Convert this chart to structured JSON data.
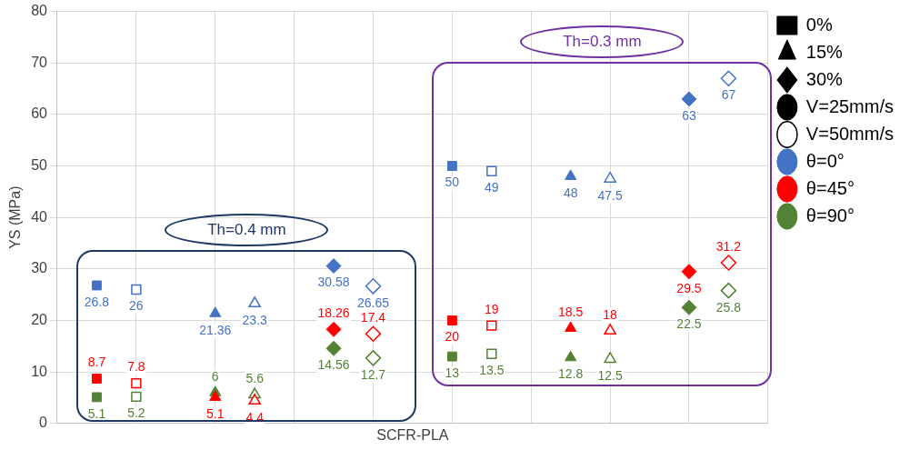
{
  "chart_data": {
    "type": "scatter",
    "xlabel": "SCFR-PLA",
    "ylabel": "YS (MPa)",
    "categories": [
      null,
      null,
      null,
      null,
      null,
      null,
      null,
      null,
      null,
      null,
      null,
      null,
      null,
      null,
      null,
      null,
      null,
      null,
      null
    ],
    "ylim": [
      0,
      80
    ],
    "yticks": [
      0,
      10,
      20,
      30,
      40,
      50,
      60,
      70,
      80
    ],
    "grid": true,
    "legend": "right",
    "tick_labels": "y",
    "data_labels": true,
    "annotations": [
      "Th=0.4 mm",
      "Th=0.3 mm"
    ],
    "series": [
      {
        "name": "0%",
        "color": "#000000",
        "marker": "square",
        "values": [
          null,
          null,
          null,
          null,
          null,
          null,
          null,
          null,
          null,
          null,
          null,
          null,
          null,
          null,
          null,
          null,
          null,
          null,
          null
        ]
      },
      {
        "name": "15%",
        "color": "#000000",
        "marker": "triangle",
        "values": [
          null,
          null,
          null,
          null,
          null,
          null,
          null,
          null,
          null,
          null,
          null,
          null,
          null,
          null,
          null,
          null,
          null,
          null,
          null
        ]
      },
      {
        "name": "30%",
        "color": "#000000",
        "marker": "diamond",
        "values": [
          null,
          null,
          null,
          null,
          null,
          null,
          null,
          null,
          null,
          null,
          null,
          null,
          null,
          null,
          null,
          null,
          null,
          null,
          null
        ]
      },
      {
        "name": "V=25mm/s",
        "color": "#000000",
        "marker": "circle",
        "values": [
          null,
          null,
          null,
          null,
          null,
          null,
          null,
          null,
          null,
          null,
          null,
          null,
          null,
          null,
          null,
          null,
          null,
          null,
          null
        ]
      },
      {
        "name": "V=50mm/s",
        "color": "#000000",
        "marker": "circle-open",
        "values": [
          null,
          null,
          null,
          null,
          null,
          null,
          null,
          null,
          null,
          null,
          null,
          null,
          null,
          null,
          null,
          null,
          null,
          null,
          null
        ]
      },
      {
        "name": "θ=0°",
        "color": "#4472c4",
        "marker": "circle",
        "values": [
          null,
          null,
          null,
          null,
          null,
          null,
          null,
          null,
          null,
          null,
          null,
          null,
          null,
          null,
          null,
          null,
          null,
          null,
          null
        ]
      },
      {
        "name": "θ=45°",
        "color": "#ff0000",
        "marker": "circle",
        "values": [
          null,
          null,
          null,
          null,
          null,
          null,
          null,
          null,
          null,
          null,
          null,
          null,
          null,
          null,
          null,
          null,
          null,
          null,
          null
        ]
      },
      {
        "name": "θ=90°",
        "color": "#548235",
        "marker": "circle",
        "values": [
          null,
          null,
          null,
          null,
          null,
          null,
          null,
          null,
          null,
          null,
          null,
          null,
          null,
          null,
          null,
          null,
          null,
          null,
          null
        ]
      },
      {
        "color": "#4472c4",
        "marker": "square",
        "values": [
          null,
          26.8,
          null,
          null,
          null,
          null,
          null,
          null,
          null,
          null,
          50,
          null,
          null,
          null,
          null,
          null,
          null,
          null,
          null
        ]
      },
      {
        "color": "#4472c4",
        "marker": "square-open",
        "values": [
          null,
          null,
          26,
          null,
          null,
          null,
          null,
          null,
          null,
          null,
          null,
          49,
          null,
          null,
          null,
          null,
          null,
          null,
          null
        ]
      },
      {
        "color": "#4472c4",
        "marker": "triangle",
        "values": [
          null,
          null,
          null,
          null,
          21.36,
          null,
          null,
          null,
          null,
          null,
          null,
          null,
          null,
          48,
          null,
          null,
          null,
          null,
          null
        ]
      },
      {
        "color": "#4472c4",
        "marker": "triangle-open",
        "values": [
          null,
          null,
          null,
          null,
          null,
          23.3,
          null,
          null,
          null,
          null,
          null,
          null,
          null,
          null,
          47.5,
          null,
          null,
          null,
          null
        ]
      },
      {
        "color": "#4472c4",
        "marker": "diamond",
        "values": [
          null,
          null,
          null,
          null,
          null,
          null,
          null,
          30.58,
          null,
          null,
          null,
          null,
          null,
          null,
          null,
          null,
          63,
          null,
          null
        ]
      },
      {
        "color": "#4472c4",
        "marker": "diamond-open",
        "values": [
          null,
          null,
          null,
          null,
          null,
          null,
          null,
          null,
          26.65,
          null,
          null,
          null,
          null,
          null,
          null,
          null,
          null,
          67,
          null
        ]
      },
      {
        "color": "#ff0000",
        "marker": "square",
        "values": [
          null,
          8.7,
          null,
          null,
          null,
          null,
          null,
          null,
          null,
          null,
          20,
          null,
          null,
          null,
          null,
          null,
          null,
          null,
          null
        ]
      },
      {
        "color": "#ff0000",
        "marker": "square-open",
        "values": [
          null,
          null,
          7.8,
          null,
          null,
          null,
          null,
          null,
          null,
          null,
          null,
          19,
          null,
          null,
          null,
          null,
          null,
          null,
          null
        ]
      },
      {
        "color": "#ff0000",
        "marker": "triangle",
        "values": [
          null,
          null,
          null,
          null,
          5.1,
          null,
          null,
          null,
          null,
          null,
          null,
          null,
          null,
          18.5,
          null,
          null,
          null,
          null,
          null
        ]
      },
      {
        "color": "#ff0000",
        "marker": "triangle-open",
        "values": [
          null,
          null,
          null,
          null,
          null,
          4.4,
          null,
          null,
          null,
          null,
          null,
          null,
          null,
          null,
          18,
          null,
          null,
          null,
          null
        ]
      },
      {
        "color": "#ff0000",
        "marker": "diamond",
        "values": [
          null,
          null,
          null,
          null,
          null,
          null,
          null,
          18.26,
          null,
          null,
          null,
          null,
          null,
          null,
          null,
          null,
          29.5,
          null,
          null
        ]
      },
      {
        "color": "#ff0000",
        "marker": "diamond-open",
        "values": [
          null,
          null,
          null,
          null,
          null,
          null,
          null,
          null,
          17.4,
          null,
          null,
          null,
          null,
          null,
          null,
          null,
          null,
          31.2,
          null
        ]
      },
      {
        "color": "#548235",
        "marker": "square",
        "values": [
          null,
          5.1,
          null,
          null,
          null,
          null,
          null,
          null,
          null,
          null,
          13,
          null,
          null,
          null,
          null,
          null,
          null,
          null,
          null
        ]
      },
      {
        "color": "#548235",
        "marker": "square-open",
        "values": [
          null,
          null,
          5.2,
          null,
          null,
          null,
          null,
          null,
          null,
          null,
          null,
          13.5,
          null,
          null,
          null,
          null,
          null,
          null,
          null
        ]
      },
      {
        "color": "#548235",
        "marker": "triangle",
        "values": [
          null,
          null,
          null,
          null,
          6,
          null,
          null,
          null,
          null,
          null,
          null,
          null,
          null,
          12.8,
          null,
          null,
          null,
          null,
          null
        ]
      },
      {
        "color": "#548235",
        "marker": "triangle-open",
        "values": [
          null,
          null,
          null,
          null,
          null,
          5.6,
          null,
          null,
          null,
          null,
          null,
          null,
          null,
          null,
          12.5,
          null,
          null,
          null,
          null
        ]
      },
      {
        "color": "#548235",
        "marker": "diamond",
        "values": [
          null,
          null,
          null,
          null,
          null,
          null,
          null,
          14.56,
          null,
          null,
          null,
          null,
          null,
          null,
          null,
          null,
          22.5,
          null,
          null
        ]
      },
      {
        "color": "#548235",
        "marker": "diamond-open",
        "values": [
          null,
          null,
          null,
          null,
          null,
          null,
          null,
          null,
          12.7,
          null,
          null,
          null,
          null,
          null,
          null,
          null,
          null,
          25.8,
          null
        ]
      }
    ]
  }
}
